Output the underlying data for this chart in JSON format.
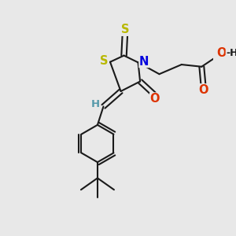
{
  "bg_color": "#e8e8e8",
  "bond_color": "#1a1a1a",
  "bond_lw": 1.5,
  "atom_colors": {
    "S": "#b8b800",
    "N": "#0000dd",
    "O": "#dd3300",
    "H": "#5599aa",
    "C": "#1a1a1a"
  },
  "figsize": [
    3.0,
    3.0
  ],
  "dpi": 100,
  "xlim": [
    0,
    10
  ],
  "ylim": [
    0,
    10
  ]
}
